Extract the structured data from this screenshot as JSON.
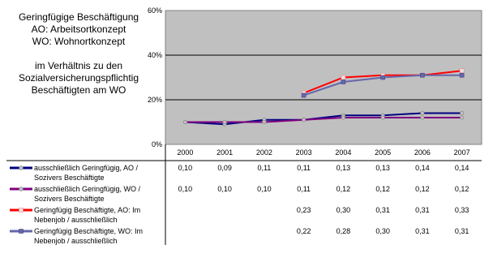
{
  "chart_data": {
    "type": "line",
    "title_lines": [
      "Geringfügige Beschäftigung",
      "AO: Arbeitsortkonzept",
      "WO: Wohnortkonzept",
      "",
      "im Verhältnis zu den",
      "Sozialversicherungspflichtig",
      "Beschäftigten am WO"
    ],
    "x": [
      "2000",
      "2001",
      "2002",
      "2003",
      "2004",
      "2005",
      "2006",
      "2007"
    ],
    "ylim": [
      0,
      0.6
    ],
    "yticks": [
      "0%",
      "20%",
      "40%",
      "60%"
    ],
    "grid": true,
    "plot_background": "#c0c0c0",
    "series": [
      {
        "name_lines": [
          "ausschließlich Geringfügig, AO /",
          "Sozivers Beschäftigte"
        ],
        "color": "#000080",
        "marker_color": "#c0c0c0",
        "values": [
          0.1,
          0.09,
          0.11,
          0.11,
          0.13,
          0.13,
          0.14,
          0.14
        ],
        "labels": [
          "0,10",
          "0,09",
          "0,11",
          "0,11",
          "0,13",
          "0,13",
          "0,14",
          "0,14"
        ]
      },
      {
        "name_lines": [
          "ausschließlich Geringfügig, WO /",
          "Sozivers Beschäftigte"
        ],
        "color": "#800080",
        "marker_color": "#c0c0c0",
        "values": [
          0.1,
          0.1,
          0.1,
          0.11,
          0.12,
          0.12,
          0.12,
          0.12
        ],
        "labels": [
          "0,10",
          "0,10",
          "0,10",
          "0,11",
          "0,12",
          "0,12",
          "0,12",
          "0,12"
        ]
      },
      {
        "name_lines": [
          "Geringfügig Beschäftigte, AO: Im",
          "Nebenjob / ausschließlich"
        ],
        "color": "#ff0000",
        "marker_color": "#e6e6e6",
        "values": [
          null,
          null,
          null,
          0.23,
          0.3,
          0.31,
          0.31,
          0.33
        ],
        "labels": [
          "",
          "",
          "",
          "0,23",
          "0,30",
          "0,31",
          "0,31",
          "0,33"
        ]
      },
      {
        "name_lines": [
          "Geringfügig Beschäftigte, WO: Im",
          "Nebenjob / ausschließlich"
        ],
        "color": "#6666aa",
        "marker_color": "#6666aa",
        "values": [
          null,
          null,
          null,
          0.22,
          0.28,
          0.3,
          0.31,
          0.31
        ],
        "labels": [
          "",
          "",
          "",
          "0,22",
          "0,28",
          "0,30",
          "0,31",
          "0,31"
        ]
      }
    ]
  }
}
